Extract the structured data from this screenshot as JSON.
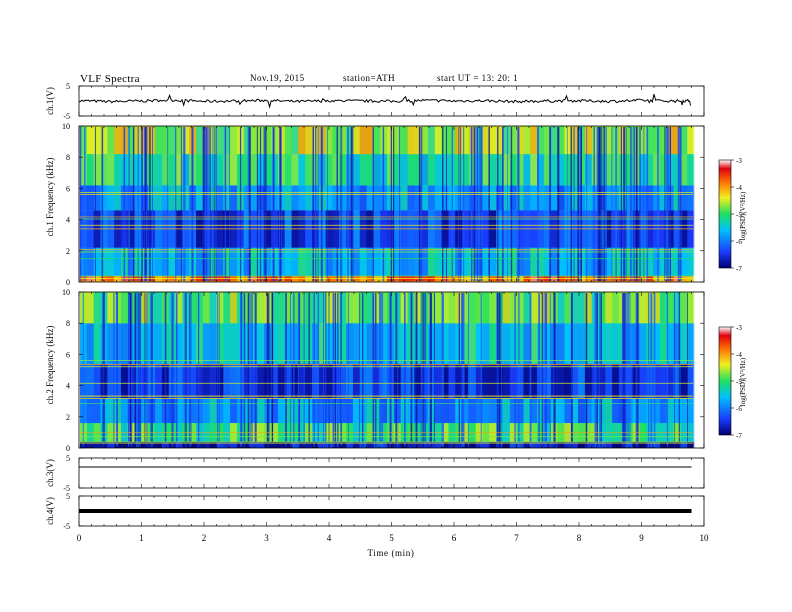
{
  "header": {
    "title": "VLF  Spectra",
    "date": "Nov.19, 2015",
    "station": "station=ATH",
    "start": "start  UT  =    13: 20: 1"
  },
  "chart_data": [
    {
      "type": "line",
      "panel": "ch1-waveform",
      "ylabel": "ch.1(V)",
      "yticks": [
        "5",
        "-5"
      ],
      "ylim": [
        -5,
        5
      ],
      "x": [
        0,
        0.5,
        1,
        1.5,
        2,
        2.5,
        3,
        3.5,
        4,
        4.5,
        5,
        5.5,
        6,
        6.5,
        7,
        7.5,
        8,
        8.5,
        9,
        9.5,
        9.8
      ],
      "values": [
        0.1,
        -0.2,
        0.0,
        0.3,
        -0.1,
        0.0,
        0.2,
        -0.2,
        0.1,
        0.0,
        -0.1,
        0.2,
        0.0,
        0.1,
        -0.2,
        0.0,
        0.1,
        -0.1,
        0.2,
        0.0,
        0.1
      ]
    },
    {
      "type": "heatmap",
      "panel": "ch1-spectrogram",
      "ylabel": "ch.1 Frequency (kHz)",
      "yticks": [
        "10",
        "8",
        "6",
        "4",
        "2",
        "0"
      ],
      "ylim": [
        0,
        10
      ],
      "xlim": [
        0,
        10
      ],
      "z_range": [
        -7,
        -3
      ],
      "bands_khz": [
        {
          "from": 0,
          "to": 0.4,
          "logpsd": -3.8
        },
        {
          "from": 0.4,
          "to": 2.2,
          "logpsd": -5.6
        },
        {
          "from": 2.2,
          "to": 4.6,
          "logpsd": -6.4
        },
        {
          "from": 4.6,
          "to": 6.2,
          "logpsd": -5.8
        },
        {
          "from": 6.2,
          "to": 8.2,
          "logpsd": -5.2
        },
        {
          "from": 8.2,
          "to": 10,
          "logpsd": -4.6
        }
      ]
    },
    {
      "type": "heatmap",
      "panel": "ch2-spectrogram",
      "ylabel": "ch.2 Frequency (kHz)",
      "yticks": [
        "10",
        "8",
        "6",
        "4",
        "2",
        "0"
      ],
      "ylim": [
        0,
        10
      ],
      "xlim": [
        0,
        10
      ],
      "z_range": [
        -7,
        -3
      ],
      "bands_khz": [
        {
          "from": 0,
          "to": 0.4,
          "logpsd": -6.8
        },
        {
          "from": 0.4,
          "to": 1.6,
          "logpsd": -5.0
        },
        {
          "from": 1.6,
          "to": 3.2,
          "logpsd": -5.8
        },
        {
          "from": 3.2,
          "to": 5.4,
          "logpsd": -6.5
        },
        {
          "from": 5.4,
          "to": 8.0,
          "logpsd": -5.5
        },
        {
          "from": 8.0,
          "to": 10,
          "logpsd": -4.9
        }
      ]
    },
    {
      "type": "line",
      "panel": "ch3-waveform",
      "ylabel": "ch.3(V)",
      "yticks": [
        "5",
        "-5"
      ],
      "ylim": [
        -5,
        5
      ],
      "x": [
        0,
        9.8
      ],
      "values": [
        2.0,
        2.0
      ]
    },
    {
      "type": "line",
      "panel": "ch4-waveform",
      "ylabel": "ch.4(V)",
      "yticks": [
        "5",
        "-5"
      ],
      "ylim": [
        -5,
        5
      ],
      "x": [
        0,
        9.8
      ],
      "values": [
        0.0,
        0.0
      ]
    }
  ],
  "colorbar": {
    "title": "log(PSD)(V²/Hz)",
    "ticks": [
      "-3",
      "-4",
      "-5",
      "-6",
      "-7"
    ]
  },
  "xaxis": {
    "title": "Time  (min)",
    "ticks": [
      "0",
      "1",
      "2",
      "3",
      "4",
      "5",
      "6",
      "7",
      "8",
      "9",
      "10"
    ],
    "xlim": [
      0,
      10
    ]
  }
}
